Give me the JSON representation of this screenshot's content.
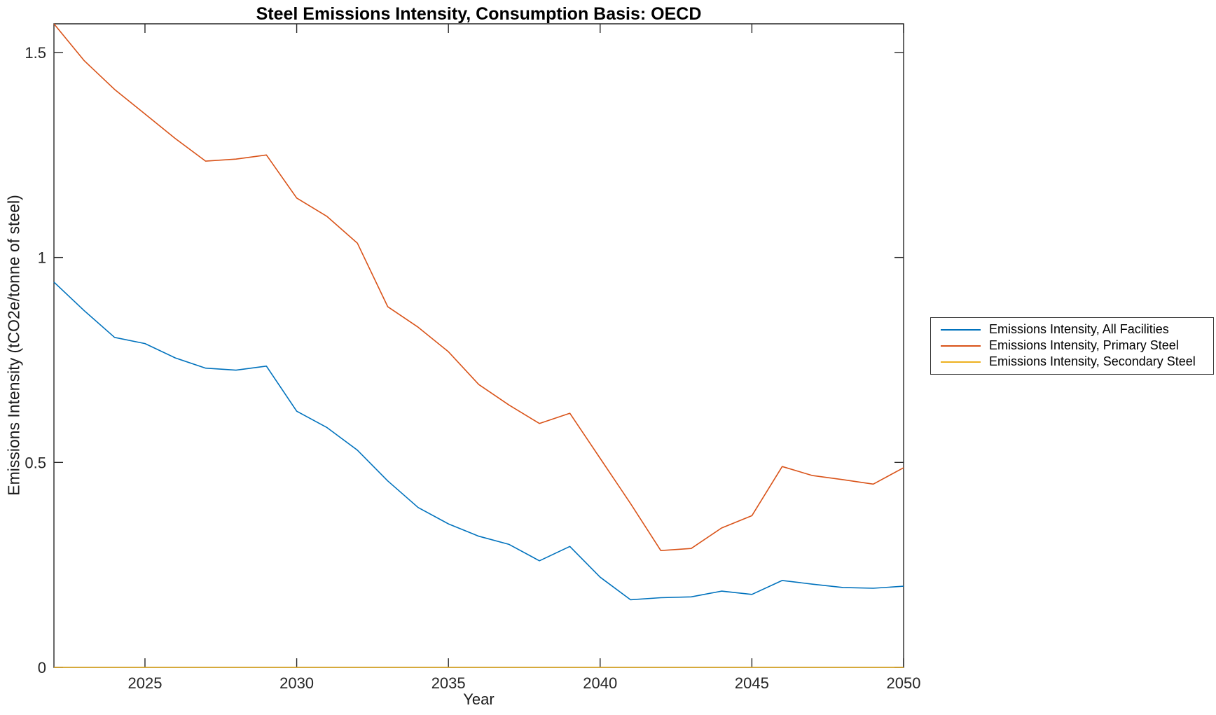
{
  "chart_data": {
    "type": "line",
    "title": "Steel Emissions Intensity, Consumption Basis: OECD",
    "xlabel": "Year",
    "ylabel": "Emissions Intensity (tCO2e/tonne of steel)",
    "xlim": [
      2022,
      2050
    ],
    "ylim": [
      0,
      1.57
    ],
    "xticks": [
      2025,
      2030,
      2035,
      2040,
      2045,
      2050
    ],
    "xtick_labels": [
      "2025",
      "2030",
      "2035",
      "2040",
      "2045",
      "2050"
    ],
    "yticks": [
      0,
      0.5,
      1,
      1.5
    ],
    "ytick_labels": [
      "0",
      "0.5",
      "1",
      "1.5"
    ],
    "grid": false,
    "box": true,
    "legend_position": "outside-right",
    "axis_color": "#262626",
    "x": [
      2022,
      2023,
      2024,
      2025,
      2026,
      2027,
      2028,
      2029,
      2030,
      2031,
      2032,
      2033,
      2034,
      2035,
      2036,
      2037,
      2038,
      2039,
      2040,
      2041,
      2042,
      2043,
      2044,
      2045,
      2046,
      2047,
      2048,
      2049,
      2050
    ],
    "series": [
      {
        "name": "Emissions Intensity, All Facilities",
        "color": "#0072BD",
        "values": [
          0.94,
          0.87,
          0.805,
          0.79,
          0.755,
          0.73,
          0.725,
          0.735,
          0.625,
          0.585,
          0.53,
          0.455,
          0.39,
          0.35,
          0.32,
          0.3,
          0.26,
          0.295,
          0.22,
          0.165,
          0.17,
          0.172,
          0.186,
          0.178,
          0.212,
          0.203,
          0.195,
          0.193,
          0.198
        ]
      },
      {
        "name": "Emissions Intensity, Primary Steel",
        "color": "#D95319",
        "values": [
          1.57,
          1.48,
          1.41,
          1.35,
          1.29,
          1.235,
          1.24,
          1.25,
          1.145,
          1.1,
          1.035,
          0.88,
          0.83,
          0.77,
          0.69,
          0.64,
          0.595,
          0.62,
          0.51,
          0.4,
          0.285,
          0.29,
          0.34,
          0.37,
          0.49,
          0.468,
          0.458,
          0.447,
          0.487
        ]
      },
      {
        "name": "Emissions Intensity, Secondary Steel",
        "color": "#EDB120",
        "values": [
          0,
          0,
          0,
          0,
          0,
          0,
          0,
          0,
          0,
          0,
          0,
          0,
          0,
          0,
          0,
          0,
          0,
          0,
          0,
          0,
          0,
          0,
          0,
          0,
          0,
          0,
          0,
          0,
          0
        ]
      }
    ]
  }
}
